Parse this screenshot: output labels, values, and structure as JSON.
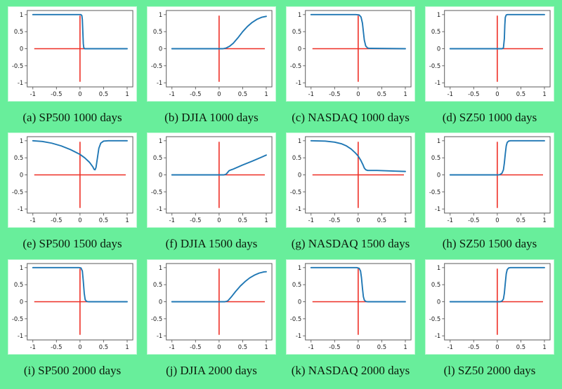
{
  "page": {
    "background_color": "#68ee9b",
    "plot_background": "#ffffff",
    "caption_color": "#0b1a0b"
  },
  "chart_data": {
    "type": "line",
    "layout": {
      "rows": 3,
      "cols": 4,
      "grid": "off",
      "legend": "none"
    },
    "xlim": [
      -1.12,
      1.12
    ],
    "ylim": [
      -1.12,
      1.12
    ],
    "x_ticks": [
      -1,
      -0.5,
      0,
      0.5,
      1
    ],
    "y_ticks": [
      1,
      0.5,
      0,
      -0.5,
      -1
    ],
    "x_tick_labels": [
      "-1",
      "-0.5",
      "0",
      "0.5",
      "1"
    ],
    "y_tick_labels": [
      "1",
      "0.5",
      "0",
      "-0.5",
      "-1"
    ],
    "colors": {
      "curve": "#1f77b4",
      "cross": "#ee2e24",
      "spine": "#5a5a5a"
    },
    "cross_lines": {
      "vertical_x": 0,
      "horizontal_y": 0,
      "y_extent": [
        -0.97,
        0.97
      ],
      "x_extent": [
        -0.97,
        0.97
      ]
    },
    "panels": [
      {
        "id": "a",
        "caption": "(a) SP500 1000 days",
        "index": "SP500",
        "days": 1000,
        "shape": "step-down",
        "points": [
          [
            -1,
            1
          ],
          [
            -0.1,
            1
          ],
          [
            0.02,
            1
          ],
          [
            0.04,
            0.97
          ],
          [
            0.05,
            0.85
          ],
          [
            0.06,
            0.5
          ],
          [
            0.07,
            0.15
          ],
          [
            0.08,
            0.03
          ],
          [
            0.1,
            0
          ],
          [
            1,
            0
          ]
        ]
      },
      {
        "id": "b",
        "caption": "(b) DJIA 1000 days",
        "index": "DJIA",
        "days": 1000,
        "shape": "smooth-rise",
        "points": [
          [
            -1,
            0
          ],
          [
            0.08,
            0
          ],
          [
            0.15,
            0.02
          ],
          [
            0.22,
            0.07
          ],
          [
            0.3,
            0.16
          ],
          [
            0.4,
            0.32
          ],
          [
            0.5,
            0.5
          ],
          [
            0.6,
            0.65
          ],
          [
            0.7,
            0.77
          ],
          [
            0.8,
            0.86
          ],
          [
            0.9,
            0.92
          ],
          [
            1,
            0.95
          ]
        ]
      },
      {
        "id": "c",
        "caption": "(c) NASDAQ 1000 days",
        "index": "NASDAQ",
        "days": 1000,
        "shape": "sigmoid-down",
        "points": [
          [
            -1,
            1
          ],
          [
            -0.05,
            1
          ],
          [
            0.02,
            0.99
          ],
          [
            0.06,
            0.93
          ],
          [
            0.09,
            0.75
          ],
          [
            0.11,
            0.5
          ],
          [
            0.13,
            0.25
          ],
          [
            0.16,
            0.08
          ],
          [
            0.2,
            0.02
          ],
          [
            0.25,
            0.01
          ],
          [
            1,
            0
          ]
        ]
      },
      {
        "id": "d",
        "caption": "(d) SZ50 1000 days",
        "index": "SZ50",
        "days": 1000,
        "shape": "step-up",
        "points": [
          [
            -1,
            0
          ],
          [
            0.1,
            0
          ],
          [
            0.13,
            0.02
          ],
          [
            0.15,
            0.3
          ],
          [
            0.16,
            0.7
          ],
          [
            0.17,
            0.92
          ],
          [
            0.19,
            0.99
          ],
          [
            0.22,
            1
          ],
          [
            1,
            1
          ]
        ]
      },
      {
        "id": "e",
        "caption": "(e) SP500 1500 days",
        "index": "SP500",
        "days": 1500,
        "shape": "dip-recover",
        "points": [
          [
            -1,
            1
          ],
          [
            -0.8,
            0.98
          ],
          [
            -0.6,
            0.93
          ],
          [
            -0.4,
            0.85
          ],
          [
            -0.2,
            0.74
          ],
          [
            -0.1,
            0.67
          ],
          [
            0,
            0.6
          ],
          [
            0.1,
            0.5
          ],
          [
            0.2,
            0.37
          ],
          [
            0.27,
            0.24
          ],
          [
            0.3,
            0.16
          ],
          [
            0.32,
            0.15
          ],
          [
            0.34,
            0.22
          ],
          [
            0.37,
            0.5
          ],
          [
            0.4,
            0.78
          ],
          [
            0.44,
            0.93
          ],
          [
            0.5,
            0.99
          ],
          [
            0.6,
            1
          ],
          [
            1,
            1
          ]
        ]
      },
      {
        "id": "f",
        "caption": "(f) DJIA 1500 days",
        "index": "DJIA",
        "days": 1500,
        "shape": "kink-linear-rise",
        "points": [
          [
            -1,
            0
          ],
          [
            0.1,
            0
          ],
          [
            0.15,
            0.02
          ],
          [
            0.18,
            0.07
          ],
          [
            0.21,
            0.12
          ],
          [
            0.24,
            0.14
          ],
          [
            0.3,
            0.17
          ],
          [
            0.5,
            0.29
          ],
          [
            0.7,
            0.4
          ],
          [
            0.9,
            0.52
          ],
          [
            1,
            0.58
          ]
        ]
      },
      {
        "id": "g",
        "caption": "(g) NASDAQ 1500 days",
        "index": "NASDAQ",
        "days": 1500,
        "shape": "decline-plateau",
        "points": [
          [
            -1,
            1
          ],
          [
            -0.7,
            0.99
          ],
          [
            -0.5,
            0.96
          ],
          [
            -0.35,
            0.91
          ],
          [
            -0.25,
            0.85
          ],
          [
            -0.15,
            0.76
          ],
          [
            -0.05,
            0.63
          ],
          [
            0,
            0.55
          ],
          [
            0.05,
            0.44
          ],
          [
            0.1,
            0.3
          ],
          [
            0.13,
            0.2
          ],
          [
            0.16,
            0.15
          ],
          [
            0.2,
            0.13
          ],
          [
            0.4,
            0.13
          ],
          [
            0.6,
            0.12
          ],
          [
            0.8,
            0.11
          ],
          [
            1,
            0.1
          ]
        ]
      },
      {
        "id": "h",
        "caption": "(h) SZ50 1500 days",
        "index": "SZ50",
        "days": 1500,
        "shape": "sigmoid-up",
        "points": [
          [
            -1,
            0
          ],
          [
            0.02,
            0
          ],
          [
            0.06,
            0.01
          ],
          [
            0.1,
            0.05
          ],
          [
            0.13,
            0.15
          ],
          [
            0.15,
            0.35
          ],
          [
            0.17,
            0.62
          ],
          [
            0.19,
            0.85
          ],
          [
            0.21,
            0.95
          ],
          [
            0.24,
            0.99
          ],
          [
            0.28,
            1
          ],
          [
            1,
            1
          ]
        ]
      },
      {
        "id": "i",
        "caption": "(i) SP500 2000 days",
        "index": "SP500",
        "days": 2000,
        "shape": "step-down",
        "points": [
          [
            -1,
            1
          ],
          [
            -0.02,
            1
          ],
          [
            0.02,
            0.99
          ],
          [
            0.05,
            0.9
          ],
          [
            0.07,
            0.6
          ],
          [
            0.09,
            0.25
          ],
          [
            0.11,
            0.06
          ],
          [
            0.14,
            0.01
          ],
          [
            0.18,
            0
          ],
          [
            1,
            0
          ]
        ]
      },
      {
        "id": "j",
        "caption": "(j) DJIA 2000 days",
        "index": "DJIA",
        "days": 2000,
        "shape": "smooth-rise",
        "points": [
          [
            -1,
            0
          ],
          [
            0.12,
            0
          ],
          [
            0.18,
            0.02
          ],
          [
            0.22,
            0.08
          ],
          [
            0.27,
            0.16
          ],
          [
            0.35,
            0.3
          ],
          [
            0.45,
            0.46
          ],
          [
            0.55,
            0.59
          ],
          [
            0.65,
            0.7
          ],
          [
            0.75,
            0.78
          ],
          [
            0.85,
            0.84
          ],
          [
            0.95,
            0.875
          ],
          [
            1,
            0.88
          ]
        ]
      },
      {
        "id": "k",
        "caption": "(k) NASDAQ 2000 days",
        "index": "NASDAQ",
        "days": 2000,
        "shape": "sigmoid-down",
        "points": [
          [
            -1,
            1
          ],
          [
            -0.03,
            1
          ],
          [
            0.02,
            0.98
          ],
          [
            0.05,
            0.9
          ],
          [
            0.07,
            0.7
          ],
          [
            0.09,
            0.4
          ],
          [
            0.11,
            0.15
          ],
          [
            0.13,
            0.05
          ],
          [
            0.16,
            0.01
          ],
          [
            0.2,
            0
          ],
          [
            1,
            0
          ]
        ]
      },
      {
        "id": "l",
        "caption": "(l) SZ50 2000 days",
        "index": "SZ50",
        "days": 2000,
        "shape": "sigmoid-up",
        "points": [
          [
            -1,
            0
          ],
          [
            0.06,
            0
          ],
          [
            0.1,
            0.02
          ],
          [
            0.13,
            0.08
          ],
          [
            0.15,
            0.25
          ],
          [
            0.17,
            0.55
          ],
          [
            0.19,
            0.82
          ],
          [
            0.21,
            0.94
          ],
          [
            0.24,
            0.99
          ],
          [
            0.28,
            1
          ],
          [
            1,
            1
          ]
        ]
      }
    ]
  }
}
